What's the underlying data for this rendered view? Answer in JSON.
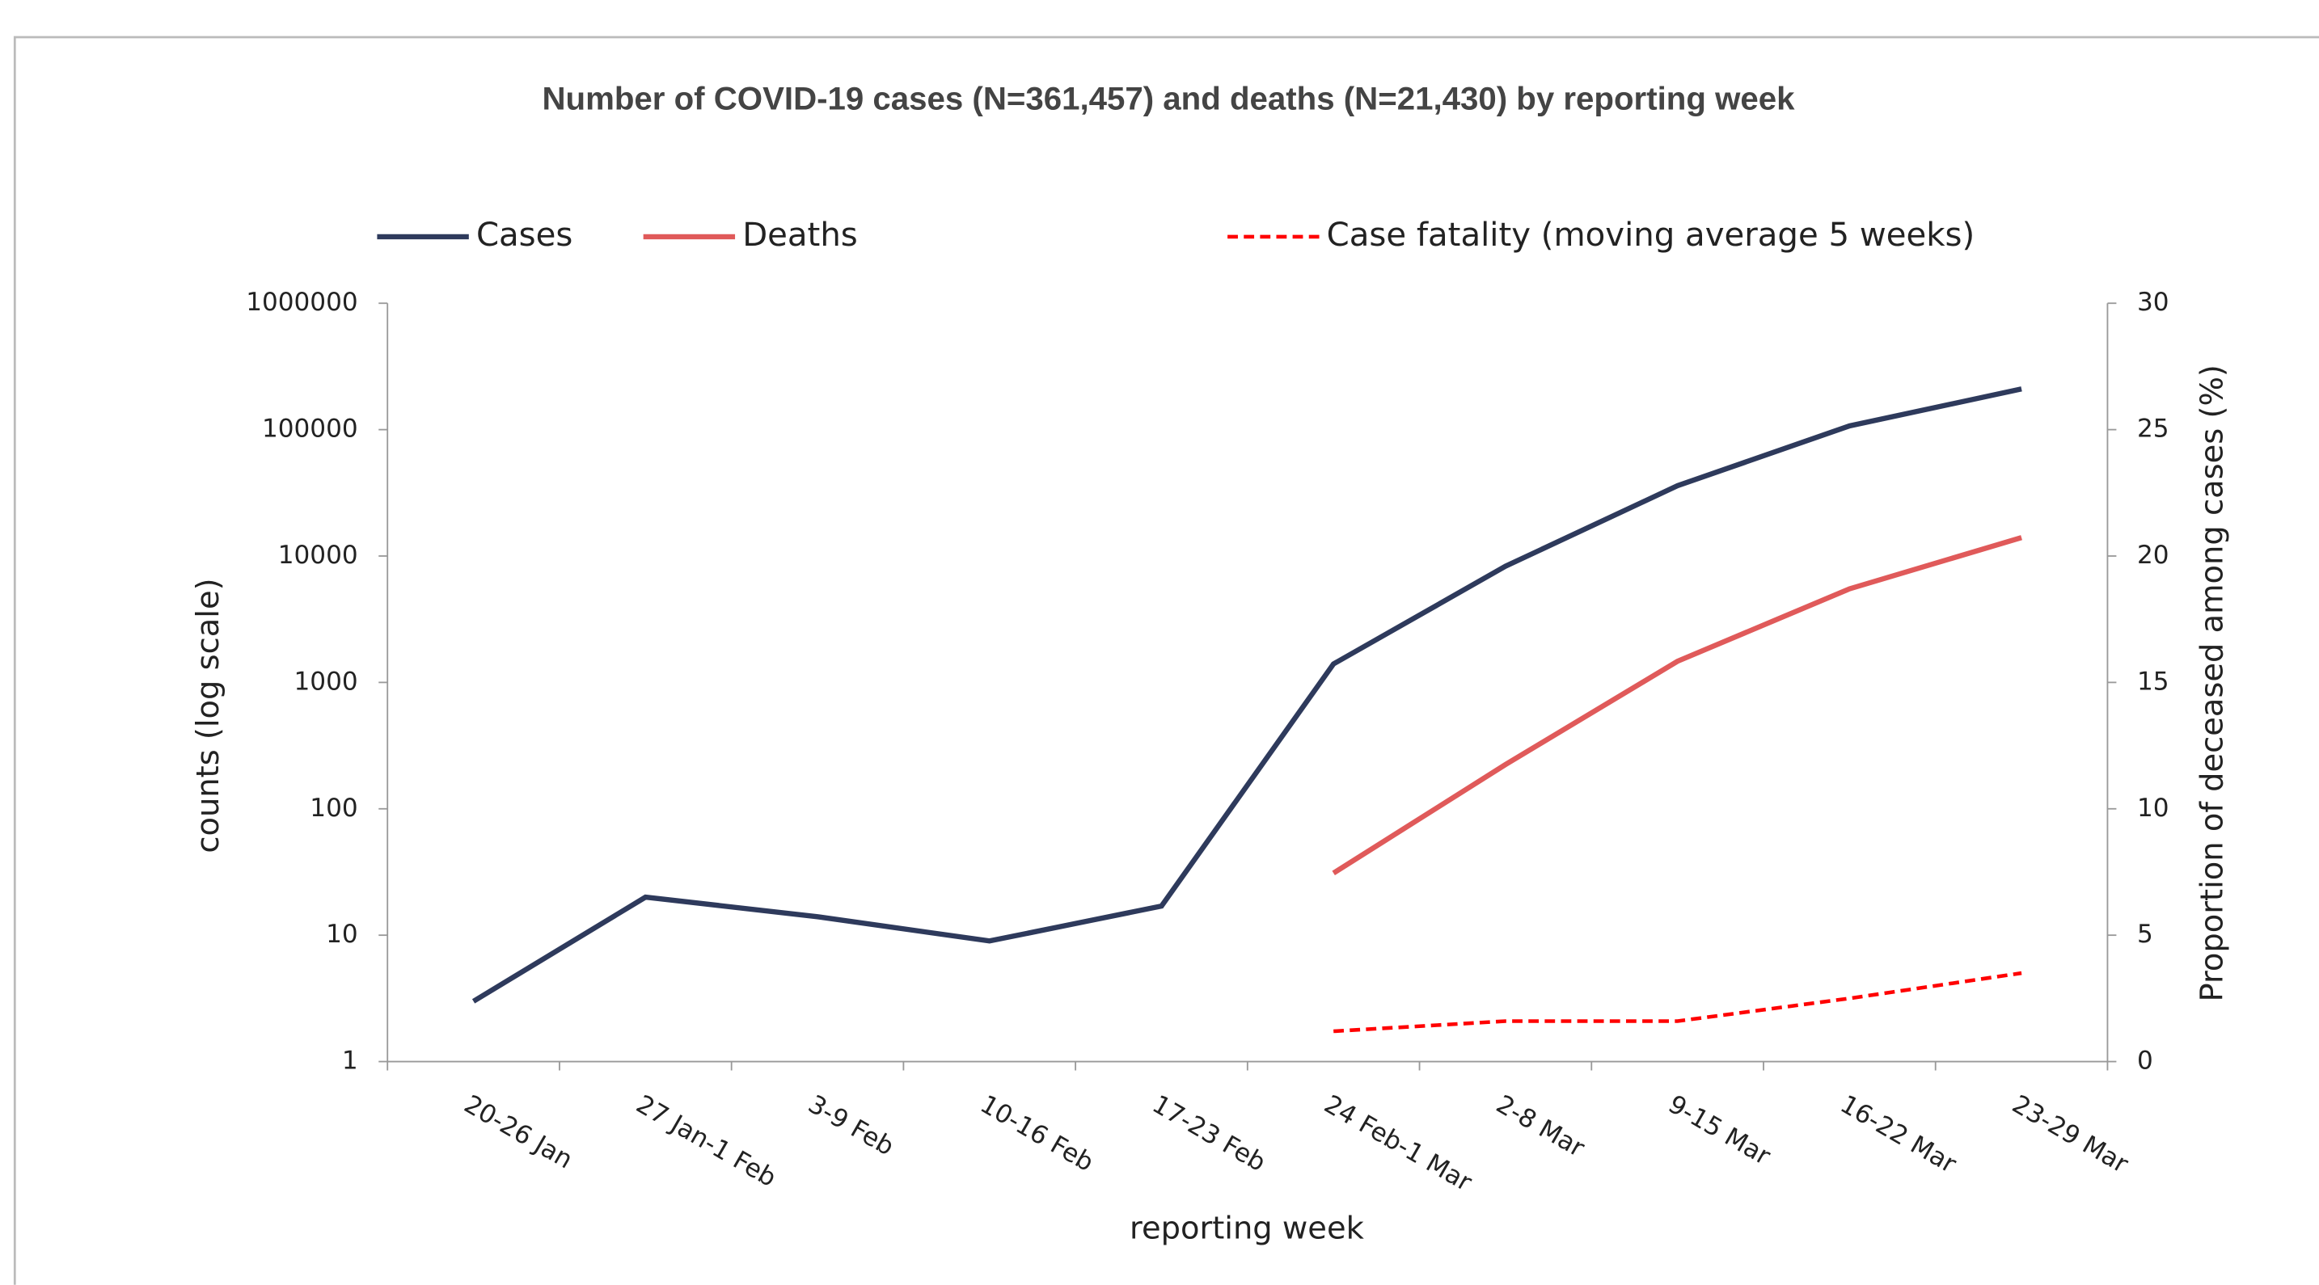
{
  "chart_data": {
    "type": "line",
    "title": "Number of COVID-19 cases (N=361,457) and deaths (N=21,430) by reporting week",
    "x_label": "reporting week",
    "y_label": "counts (log scale)",
    "y2_label": "Proportion  of deceased among cases (%)",
    "categories": [
      "20-26 Jan",
      "27 Jan-1 Feb",
      "3-9 Feb",
      "10-16 Feb",
      "17-23 Feb",
      "24 Feb-1 Mar",
      "2-8 Mar",
      "9-15 Mar",
      "16-22 Mar",
      "23-29 Mar"
    ],
    "series": [
      {
        "name": "Cases",
        "color": "#2e3a5c",
        "line_style": "solid",
        "values": [
          3,
          20,
          14,
          9,
          17,
          1400,
          8300,
          36000,
          107000,
          210000
        ]
      },
      {
        "name": "Deaths",
        "color": "#e05a5a",
        "line_style": "solid",
        "values": [
          null,
          null,
          null,
          null,
          null,
          31,
          224,
          1470,
          5500,
          14000
        ]
      },
      {
        "name": "Case fatality (moving average 5 weeks)",
        "color": "#ff0000",
        "line_style": "dashed",
        "axis": "y2",
        "values": [
          null,
          null,
          null,
          null,
          null,
          1.2,
          1.6,
          1.6,
          2.5,
          3.5
        ]
      }
    ],
    "ylog": true,
    "ylim": [
      1,
      1000000
    ],
    "yticks": [
      1,
      10,
      100,
      1000,
      10000,
      100000,
      1000000
    ],
    "y2lim": [
      0,
      30
    ],
    "y2ticks": [
      0,
      5,
      10,
      15,
      20,
      25,
      30
    ],
    "legend": "top"
  }
}
